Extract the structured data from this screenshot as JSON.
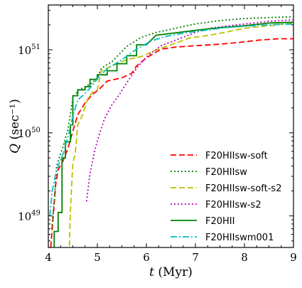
{
  "chart_data": {
    "type": "line",
    "xlabel": "t (Myr)",
    "ylabel": "Q (sec⁻¹)",
    "xlim": [
      4,
      9
    ],
    "ylim_log10": [
      48.62,
      51.54
    ],
    "y_scale": "log",
    "x_ticks": [
      "4",
      "5",
      "6",
      "7",
      "8",
      "9"
    ],
    "y_ticks": [
      {
        "value": 1e+49,
        "label": "10",
        "exp": "49"
      },
      {
        "value": 1e+50,
        "label": "10",
        "exp": "50"
      },
      {
        "value": 1e+51,
        "label": "10",
        "exp": "51"
      }
    ],
    "grid": false,
    "legend_position": "bottom-right",
    "series": [
      {
        "name": "F20HIIsw-soft",
        "color": "#ff0000",
        "dash": "8,4",
        "points": [
          [
            4.05,
            4.2e+48
          ],
          [
            4.1,
            1e+49
          ],
          [
            4.15,
            2.4e+49
          ],
          [
            4.2,
            3.6e+49
          ],
          [
            4.3,
            4.6e+49
          ],
          [
            4.4,
            6.5e+49
          ],
          [
            4.5,
            1.05e+50
          ],
          [
            4.6,
            1.65e+50
          ],
          [
            4.75,
            2.3e+50
          ],
          [
            4.9,
            2.9e+50
          ],
          [
            5.05,
            3.4e+50
          ],
          [
            5.2,
            4.2e+50
          ],
          [
            5.5,
            4.6e+50
          ],
          [
            5.7,
            5.2e+50
          ],
          [
            5.8,
            6.4e+50
          ],
          [
            6.0,
            8e+50
          ],
          [
            6.3,
            1.02e+51
          ],
          [
            6.6,
            1.08e+51
          ],
          [
            7.0,
            1.12e+51
          ],
          [
            7.5,
            1.17e+51
          ],
          [
            7.9,
            1.23e+51
          ],
          [
            8.3,
            1.31e+51
          ],
          [
            8.7,
            1.36e+51
          ],
          [
            9.0,
            1.36e+51
          ]
        ]
      },
      {
        "name": "F20HIIsw",
        "color": "#008000",
        "dash": "2,3",
        "points": [
          [
            4.07,
            7e+48
          ],
          [
            4.12,
            1.5e+49
          ],
          [
            4.17,
            4e+49
          ],
          [
            4.23,
            5.2e+49
          ],
          [
            4.3,
            6.8e+49
          ],
          [
            4.4,
            1.1e+50
          ],
          [
            4.5,
            2.6e+50
          ],
          [
            4.62,
            3.3e+50
          ],
          [
            4.75,
            3.6e+50
          ],
          [
            4.9,
            4e+50
          ],
          [
            5.0,
            4.6e+50
          ],
          [
            5.08,
            6e+50
          ],
          [
            5.3,
            7.2e+50
          ],
          [
            5.6,
            1.1e+51
          ],
          [
            5.9,
            1.42e+51
          ],
          [
            6.2,
            1.62e+51
          ],
          [
            6.6,
            1.82e+51
          ],
          [
            7.0,
            2.05e+51
          ],
          [
            7.5,
            2.25e+51
          ],
          [
            8.0,
            2.38e+51
          ],
          [
            8.5,
            2.45e+51
          ],
          [
            9.0,
            2.5e+51
          ]
        ]
      },
      {
        "name": "F20HIIsw-soft-s2",
        "color": "#bfbf00",
        "dash": "8,4",
        "points": [
          [
            4.42,
            2.7e+48
          ],
          [
            4.45,
            1.2e+49
          ],
          [
            4.5,
            4.3e+49
          ],
          [
            4.55,
            5.6e+49
          ],
          [
            4.6,
            1.25e+50
          ],
          [
            4.7,
            1.65e+50
          ],
          [
            4.8,
            2.55e+50
          ],
          [
            4.9,
            3.1e+50
          ],
          [
            5.0,
            3.3e+50
          ],
          [
            5.08,
            5.6e+50
          ],
          [
            5.3,
            6.4e+50
          ],
          [
            5.6,
            7.6e+50
          ],
          [
            5.9,
            8.3e+50
          ],
          [
            6.2,
            1e+51
          ],
          [
            6.5,
            1.15e+51
          ],
          [
            6.9,
            1.4e+51
          ],
          [
            7.2,
            1.47e+51
          ],
          [
            7.6,
            1.62e+51
          ],
          [
            8.0,
            1.82e+51
          ],
          [
            8.5,
            1.95e+51
          ],
          [
            9.0,
            2.1e+51
          ]
        ]
      },
      {
        "name": "F20HIIsw-s2",
        "color": "#bf00bf",
        "dash": "2,3",
        "points": [
          [
            4.78,
            1.5e+49
          ],
          [
            4.85,
            3.2e+49
          ],
          [
            4.95,
            6.3e+49
          ],
          [
            5.05,
            1e+50
          ],
          [
            5.15,
            1.5e+50
          ],
          [
            5.3,
            2.2e+50
          ],
          [
            5.45,
            2.9e+50
          ],
          [
            5.6,
            4e+50
          ],
          [
            5.8,
            6e+50
          ],
          [
            6.0,
            8.2e+50
          ],
          [
            6.3,
            1.12e+51
          ],
          [
            6.7,
            1.38e+51
          ],
          [
            7.0,
            1.62e+51
          ],
          [
            7.3,
            1.82e+51
          ],
          [
            7.7,
            1.95e+51
          ],
          [
            8.0,
            2.05e+51
          ],
          [
            8.5,
            2.2e+51
          ],
          [
            9.0,
            2.3e+51
          ]
        ]
      },
      {
        "name": "F20HII",
        "color": "#008000",
        "dash": "",
        "points": [
          [
            4.05,
            3.3e+48
          ],
          [
            4.12,
            3.3e+48
          ],
          [
            4.12,
            6.5e+48
          ],
          [
            4.2,
            6.5e+48
          ],
          [
            4.2,
            1.1e+49
          ],
          [
            4.28,
            1.1e+49
          ],
          [
            4.28,
            5e+49
          ],
          [
            4.35,
            5e+49
          ],
          [
            4.35,
            7.8e+49
          ],
          [
            4.45,
            7.8e+49
          ],
          [
            4.45,
            1.25e+50
          ],
          [
            4.5,
            1.25e+50
          ],
          [
            4.5,
            2.8e+50
          ],
          [
            4.6,
            2.8e+50
          ],
          [
            4.6,
            3.3e+50
          ],
          [
            4.75,
            3.3e+50
          ],
          [
            4.75,
            3.6e+50
          ],
          [
            4.85,
            3.6e+50
          ],
          [
            4.85,
            4.4e+50
          ],
          [
            5.0,
            4.4e+50
          ],
          [
            5.0,
            5e+50
          ],
          [
            5.2,
            5e+50
          ],
          [
            5.2,
            5.6e+50
          ],
          [
            5.4,
            5.6e+50
          ],
          [
            5.4,
            6.8e+50
          ],
          [
            5.6,
            6.8e+50
          ],
          [
            5.6,
            8.5e+50
          ],
          [
            5.8,
            8.5e+50
          ],
          [
            5.8,
            1.15e+51
          ],
          [
            6.0,
            1.15e+51
          ],
          [
            6.2,
            1.5e+51
          ],
          [
            6.6,
            1.6e+51
          ],
          [
            7.0,
            1.72e+51
          ],
          [
            7.5,
            1.85e+51
          ],
          [
            8.0,
            1.95e+51
          ],
          [
            8.5,
            2.1e+51
          ],
          [
            9.0,
            2.15e+51
          ]
        ]
      },
      {
        "name": "F20HIIswm001",
        "color": "#00bfbf",
        "dash": "9,3,2,3",
        "points": [
          [
            4.03,
            1e+49
          ],
          [
            4.08,
            2e+49
          ],
          [
            4.15,
            3.2e+49
          ],
          [
            4.22,
            4.3e+49
          ],
          [
            4.32,
            6e+49
          ],
          [
            4.42,
            1e+50
          ],
          [
            4.5,
            1.6e+50
          ],
          [
            4.6,
            2.5e+50
          ],
          [
            4.7,
            2.8e+50
          ],
          [
            4.8,
            3.2e+50
          ],
          [
            4.95,
            4.1e+50
          ],
          [
            5.05,
            4.9e+50
          ],
          [
            5.2,
            5.9e+50
          ],
          [
            5.5,
            7.6e+50
          ],
          [
            5.8,
            1.02e+51
          ],
          [
            6.1,
            1.28e+51
          ],
          [
            6.4,
            1.45e+51
          ],
          [
            6.8,
            1.6e+51
          ],
          [
            7.2,
            1.72e+51
          ],
          [
            7.6,
            1.85e+51
          ],
          [
            8.0,
            1.92e+51
          ],
          [
            8.5,
            2e+51
          ],
          [
            9.0,
            2.05e+51
          ]
        ]
      }
    ]
  }
}
